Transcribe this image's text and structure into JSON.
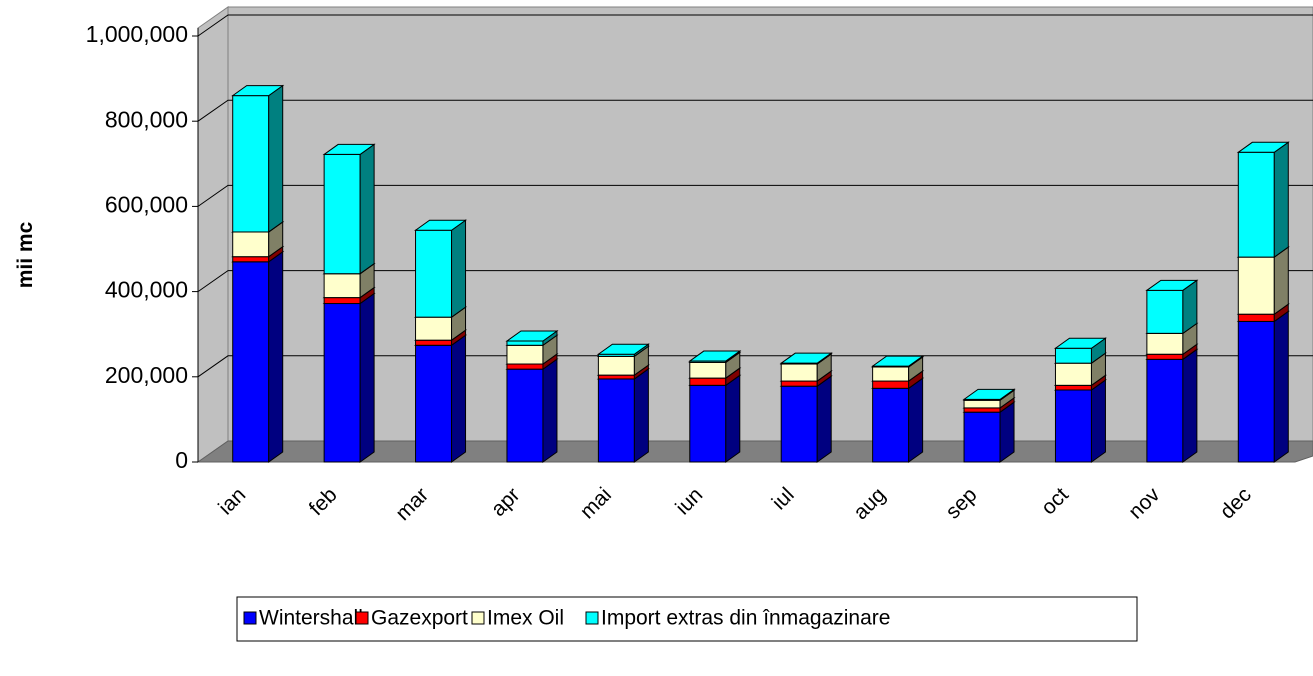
{
  "chart_data": {
    "type": "bar3d-stacked",
    "y_label": "mii mc",
    "categories": [
      "ian",
      "feb",
      "mar",
      "apr",
      "mai",
      "iun",
      "iul",
      "aug",
      "sep",
      "oct",
      "nov",
      "dec"
    ],
    "series": [
      {
        "name": "Wintershall",
        "color": "#0000ff",
        "values": [
          470000,
          372000,
          274000,
          218000,
          195000,
          180000,
          178000,
          173000,
          117000,
          169000,
          241000,
          330000
        ]
      },
      {
        "name": "Gazexport",
        "color": "#ff0000",
        "values": [
          12000,
          14000,
          12000,
          12000,
          9000,
          17000,
          12000,
          17000,
          10000,
          11000,
          12000,
          17000
        ]
      },
      {
        "name": "Imex Oil",
        "color": "#ffffcc",
        "values": [
          58000,
          56000,
          54000,
          44000,
          44000,
          37000,
          40000,
          33000,
          18000,
          52000,
          49000,
          134000
        ]
      },
      {
        "name": "Import extras din înmagazinare",
        "color": "#00ffff",
        "values": [
          320000,
          280000,
          204000,
          10000,
          5000,
          3000,
          2000,
          2000,
          2000,
          35000,
          101000,
          246000
        ]
      }
    ],
    "ylim": [
      0,
      1000000
    ],
    "yticks": [
      0,
      {
        "value": 200000,
        "label": "200,000"
      },
      {
        "value": 400000,
        "label": "400,000"
      },
      {
        "value": 600000,
        "label": "600,000"
      },
      {
        "value": 800000,
        "label": "800,000"
      },
      {
        "value": 1000000,
        "label": "1,000,000"
      }
    ],
    "grid": true,
    "legend": "bottom"
  }
}
